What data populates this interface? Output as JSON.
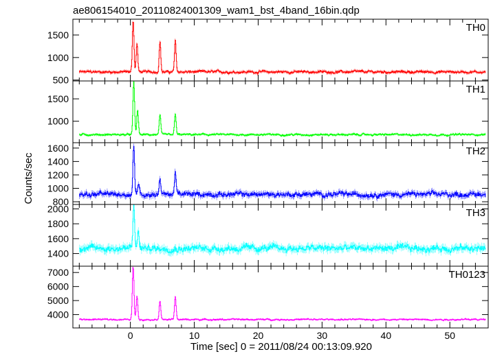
{
  "chart_data": {
    "type": "line",
    "title": "ae806154010_20110824001309_wam1_bst_4band_16bin.qdp",
    "xlabel": "Time [sec] 0 = 2011/08/24 00:13:09.920",
    "ylabel": "Counts/sec",
    "xlim": [
      -9,
      56
    ],
    "x_ticks": [
      0,
      10,
      20,
      30,
      40,
      50
    ],
    "panels": [
      {
        "name": "TH0",
        "color": "#ff0000",
        "ylim": [
          480,
          1850
        ],
        "y_ticks": [
          500,
          1000,
          1500
        ],
        "baseline": 680,
        "noise": 60,
        "peaks": [
          {
            "t": 0.4,
            "value": 1820
          },
          {
            "t": 1.0,
            "value": 1300
          },
          {
            "t": 4.6,
            "value": 1350
          },
          {
            "t": 7.0,
            "value": 1350
          }
        ]
      },
      {
        "name": "TH1",
        "color": "#00ff00",
        "ylim": [
          520,
          1900
        ],
        "y_ticks": [
          1000,
          1500
        ],
        "baseline": 700,
        "noise": 45,
        "peaks": [
          {
            "t": 0.5,
            "value": 1880
          },
          {
            "t": 1.1,
            "value": 1250
          },
          {
            "t": 4.6,
            "value": 1120
          },
          {
            "t": 7.0,
            "value": 1150
          }
        ]
      },
      {
        "name": "TH2",
        "color": "#0000ff",
        "ylim": [
          760,
          1680
        ],
        "y_ticks": [
          800,
          1000,
          1200,
          1400,
          1600
        ],
        "baseline": 910,
        "noise": 75,
        "peaks": [
          {
            "t": 0.5,
            "value": 1650
          },
          {
            "t": 1.3,
            "value": 1080
          },
          {
            "t": 4.6,
            "value": 1150
          },
          {
            "t": 7.0,
            "value": 1250
          }
        ]
      },
      {
        "name": "TH3",
        "color": "#00ffff",
        "ylim": [
          1230,
          2060
        ],
        "y_ticks": [
          1400,
          1600,
          1800,
          2000
        ],
        "baseline": 1470,
        "noise": 90,
        "peaks": [
          {
            "t": 0.5,
            "value": 2050
          },
          {
            "t": 1.2,
            "value": 1700
          }
        ]
      },
      {
        "name": "TH0123",
        "color": "#ff00ff",
        "ylim": [
          3050,
          7450
        ],
        "y_ticks": [
          4000,
          5000,
          6000,
          7000
        ],
        "baseline": 3650,
        "noise": 110,
        "peaks": [
          {
            "t": 0.4,
            "value": 7400
          },
          {
            "t": 1.0,
            "value": 5300
          },
          {
            "t": 4.6,
            "value": 5000
          },
          {
            "t": 7.0,
            "value": 5250
          }
        ]
      }
    ]
  }
}
